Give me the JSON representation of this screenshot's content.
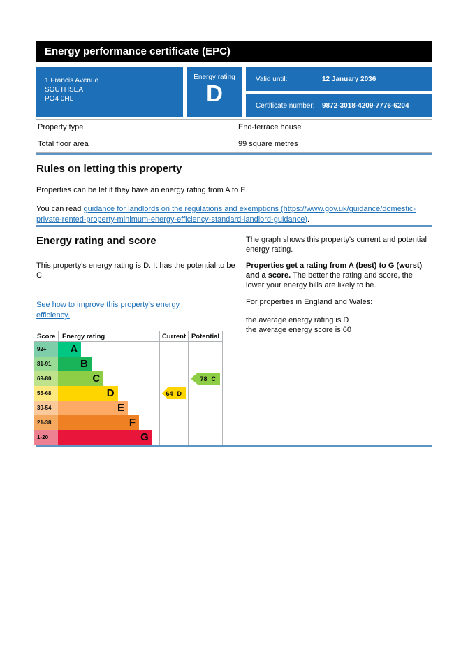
{
  "colors": {
    "govuk_blue": "#1d70b8",
    "link_blue": "#1d70b8",
    "divider_blue": "#5d94c4",
    "border_gray": "#b1b4b6"
  },
  "header": {
    "title": "Energy performance certificate (EPC)"
  },
  "summary": {
    "address_lines": [
      "1 Francis Avenue",
      "SOUTHSEA",
      "PO4 0HL"
    ],
    "rating_label": "Energy rating",
    "rating_value": "D",
    "valid_until_label": "Valid until:",
    "valid_until_value": "12 January 2036",
    "certificate_label": "Certificate number:",
    "certificate_value": "9872-3018-4209-7776-6204"
  },
  "property_table": {
    "rows": [
      {
        "label": "Property type",
        "value": "End-terrace house"
      },
      {
        "label": "Total floor area",
        "value": "99 square metres"
      }
    ]
  },
  "rules": {
    "heading": "Rules on letting this property",
    "paragraph": "Properties can be let if they have an energy rating from A to E.",
    "link_prefix": "You can read ",
    "link_text": "guidance for landlords on the regulations and exemptions (https://www.gov.uk/guidance/domestic-private-rented-property-minimum-energy-efficiency-standard-landlord-guidance)",
    "link_suffix": "."
  },
  "rating_section": {
    "heading": "Energy rating and score",
    "intro": "This property's energy rating is D. It has the potential to be C.",
    "improve_link": "See how to improve this property's energy efficiency.",
    "right_p1": "The graph shows this property's current and potential energy rating.",
    "right_p2_bold": "Properties get a rating from A (best) to G (worst) and a score.",
    "right_p2_rest": " The better the rating and score, the lower your energy bills are likely to be.",
    "right_p3": "For properties in England and Wales:",
    "right_p4_line1": "the average energy rating is D",
    "right_p4_line2": "the average energy score is 60"
  },
  "chart_data": {
    "type": "bar",
    "title": "EPC energy rating and score graph",
    "columns": [
      "Score",
      "Energy rating",
      "Current",
      "Potential"
    ],
    "bands": [
      {
        "score": "92+",
        "letter": "A",
        "color": "#00c781",
        "tint": "#7fceaa",
        "bar_pct": 23
      },
      {
        "score": "81-91",
        "letter": "B",
        "color": "#19b459",
        "tint": "#99da94",
        "bar_pct": 33
      },
      {
        "score": "69-80",
        "letter": "C",
        "color": "#8dce46",
        "tint": "#bfe28d",
        "bar_pct": 45
      },
      {
        "score": "55-68",
        "letter": "D",
        "color": "#ffd500",
        "tint": "#ffe97e",
        "bar_pct": 59
      },
      {
        "score": "39-54",
        "letter": "E",
        "color": "#fcaa65",
        "tint": "#fcc99b",
        "bar_pct": 69
      },
      {
        "score": "21-38",
        "letter": "F",
        "color": "#ef8023",
        "tint": "#f4a95f",
        "bar_pct": 80
      },
      {
        "score": "1-20",
        "letter": "G",
        "color": "#e9153b",
        "tint": "#ee8191",
        "bar_pct": 93
      }
    ],
    "current": {
      "score": "64",
      "band": "D",
      "band_index": 3,
      "color": "#ffd500"
    },
    "potential": {
      "score": "78",
      "band": "C",
      "band_index": 2,
      "color": "#8dce46"
    }
  }
}
